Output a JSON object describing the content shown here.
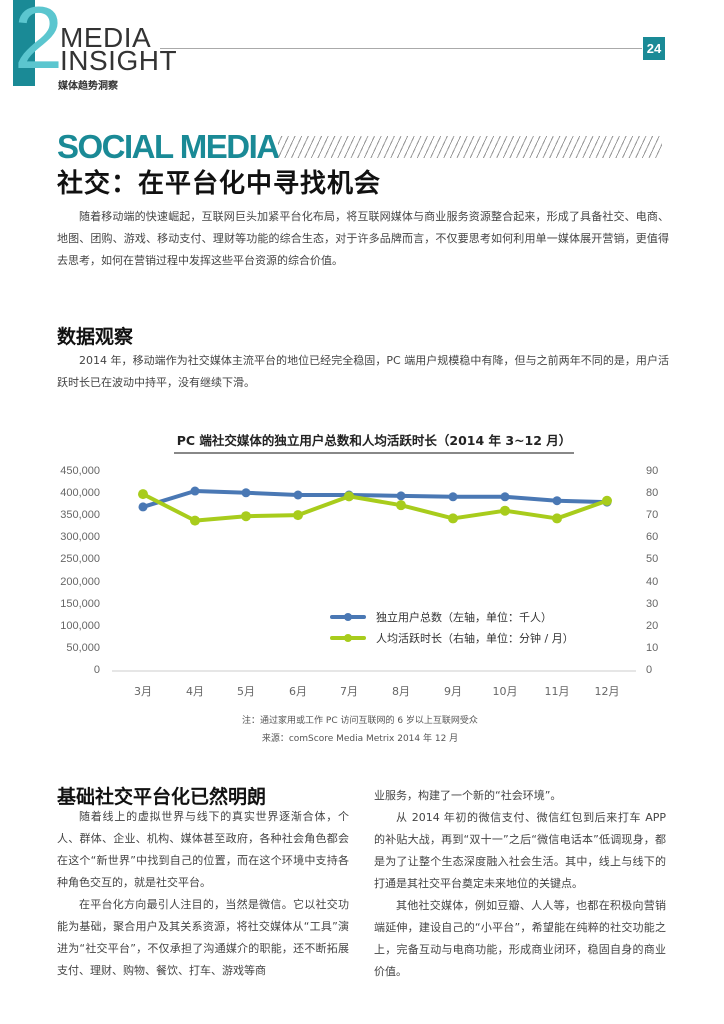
{
  "header": {
    "issue_digit": "2",
    "brand_line1": "MEDIA",
    "brand_line2": "INSIGHT",
    "brand_cn": "媒体趋势洞察",
    "page_number": "24",
    "accent_color": "#1a8a96"
  },
  "section": {
    "title_en": "SOCIAL MEDIA",
    "title_cn": "社交：在平台化中寻找机会",
    "intro": "随着移动端的快速崛起，互联网巨头加紧平台化布局，将互联网媒体与商业服务资源整合起来，形成了具备社交、电商、地图、团购、游戏、移动支付、理财等功能的综合生态，对于许多品牌而言，不仅要思考如何利用单一媒体展开营销，更值得去思考，如何在营销过程中发挥这些平台资源的综合价值。"
  },
  "data_section": {
    "heading": "数据观察",
    "body": "2014 年，移动端作为社交媒体主流平台的地位已经完全稳固，PC 端用户规模稳中有降，但与之前两年不同的是，用户活跃时长已在波动中持平，没有继续下滑。"
  },
  "chart_data": {
    "type": "line",
    "title": "PC 端社交媒体的独立用户总数和人均活跃时长（2014 年 3~12 月）",
    "xlabel": "",
    "categories": [
      "3月",
      "4月",
      "5月",
      "6月",
      "7月",
      "8月",
      "9月",
      "10月",
      "11月",
      "12月"
    ],
    "y_left": {
      "label": "独立用户总数（千人）",
      "range": [
        0,
        450000
      ],
      "ticks": [
        "450,000",
        "400,000",
        "350,000",
        "300,000",
        "250,000",
        "200,000",
        "150,000",
        "100,000",
        "50,000",
        "0"
      ]
    },
    "y_right": {
      "label": "人均活跃时长（分钟/月）",
      "range": [
        0,
        90
      ],
      "ticks": [
        "90",
        "80",
        "70",
        "60",
        "50",
        "40",
        "30",
        "20",
        "10",
        "0"
      ]
    },
    "series": [
      {
        "name": "独立用户总数（左轴，单位：千人）",
        "axis": "left",
        "color": "#4a78b4",
        "values": [
          371000,
          407000,
          403000,
          398000,
          398000,
          396000,
          394000,
          394000,
          385000,
          382000
        ]
      },
      {
        "name": "人均活跃时长（右轴，单位：分钟 / 月）",
        "axis": "right",
        "color": "#a8cc1c",
        "values": [
          80,
          68,
          70,
          70.5,
          79,
          75,
          69,
          72.5,
          69,
          77
        ]
      }
    ],
    "grid": false,
    "legend_position": "inside-lower-right",
    "notes": [
      "注：通过家用或工作 PC 访问互联网的 6 岁以上互联网受众",
      "来源：comScore Media Metrix 2014 年 12 月"
    ]
  },
  "basic_section": {
    "heading": "基础社交平台化已然明朗",
    "left_paragraphs": [
      "随着线上的虚拟世界与线下的真实世界逐渐合体，个人、群体、企业、机构、媒体甚至政府，各种社会角色都会在这个“新世界”中找到自己的位置，而在这个环境中支持各种角色交互的，就是社交平台。",
      "在平台化方向最引人注目的，当然是微信。它以社交功能为基础，聚合用户及其关系资源，将社交媒体从“工具”演进为“社交平台”，不仅承担了沟通媒介的职能，还不断拓展支付、理财、购物、餐饮、打车、游戏等商"
    ],
    "right_continuation": "业服务，构建了一个新的“社会环境”。",
    "right_paragraphs": [
      "从 2014 年初的微信支付、微信红包到后来打车 APP 的补贴大战，再到“双十一”之后“微信电话本”低调现身，都是为了让整个生态深度融入社会生活。其中，线上与线下的打通是其社交平台奠定未来地位的关键点。",
      "其他社交媒体，例如豆瓣、人人等，也都在积极向营销端延伸，建设自己的“小平台”，希望能在纯粹的社交功能之上，完备互动与电商功能，形成商业闭环，稳固自身的商业价值。"
    ]
  }
}
